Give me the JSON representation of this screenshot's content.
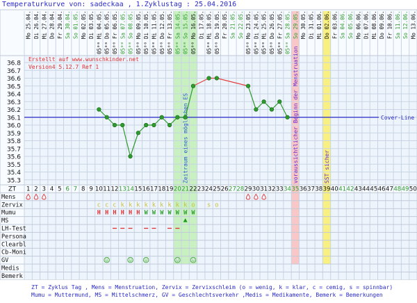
{
  "title": "Temperaturkurve von: sadeckaa , 1.Zyklustag : 25.04.2016",
  "credit": "Erstellt auf www.wunschkinder.net",
  "version": "Version4 5.12.7 Ref 1",
  "header": {
    "weekdays": [
      "Mo",
      "Di",
      "Mi",
      "Do",
      "Fr",
      "Sa",
      "So",
      "Mo",
      "Di",
      "Mi",
      "Do",
      "Fr",
      "Sa",
      "So",
      "Mo",
      "Di",
      "Mi",
      "Do",
      "Fr",
      "Sa",
      "So",
      "Mo",
      "Di",
      "Mi",
      "Do",
      "Fr",
      "Sa",
      "So",
      "Mo",
      "Di",
      "Mi",
      "Do",
      "Fr",
      "Sa",
      "So",
      "Mo",
      "Di",
      "Mi",
      "Do",
      "Fr",
      "Sa",
      "So",
      "Mo",
      "Di",
      "Mi",
      "Do",
      "Fr",
      "Sa",
      "So",
      "Mo"
    ],
    "dates": [
      "25.04.",
      "26.04.",
      "27.04.",
      "28.04.",
      "29.04.",
      "30.04.",
      "01.05.",
      "02.05.",
      "03.05.",
      "04.05.",
      "05.05.",
      "06.05.",
      "07.05.",
      "08.05.",
      "09.05.",
      "10.05.",
      "11.05.",
      "12.05.",
      "13.05.",
      "14.05.",
      "15.05.",
      "16.05.",
      "17.05.",
      "18.05.",
      "19.05.",
      "20.05.",
      "21.05.",
      "22.05.",
      "23.05.",
      "24.05.",
      "25.05.",
      "26.05.",
      "27.05.",
      "28.05.",
      "29.05.",
      "30.05.",
      "31.05.",
      "01.06.",
      "02.06.",
      "03.06.",
      "04.06.",
      "05.06.",
      "06.06.",
      "07.06.",
      "08.06.",
      "09.06.",
      "10.06.",
      "11.06.",
      "12.06.",
      "13.06."
    ],
    "times": [
      null,
      null,
      null,
      null,
      null,
      null,
      null,
      null,
      null,
      "05⁰⁰",
      "05⁰⁰",
      "05⁰⁰",
      "05⁰⁰",
      "05⁰⁰",
      "05⁰⁰",
      "05⁰⁰",
      "05⁰⁰",
      "05⁰⁰",
      "05⁰⁰",
      "05⁰⁰",
      "05⁰⁰",
      "05⁰⁰",
      null,
      "05⁰⁰",
      "05⁰⁰",
      null,
      null,
      null,
      "05⁰⁰",
      "05⁰⁰",
      "05⁰⁰",
      "05⁰⁰",
      "05⁰⁰",
      "05⁰⁰",
      null,
      null,
      null,
      null,
      null,
      null,
      null,
      null,
      null,
      null,
      null,
      null,
      null,
      null,
      null,
      null
    ]
  },
  "chart_data": {
    "type": "line",
    "x": [
      1,
      2,
      3,
      4,
      5,
      6,
      7,
      8,
      9,
      10,
      11,
      12,
      13,
      14,
      15,
      16,
      17,
      18,
      19,
      20,
      21,
      22,
      23,
      24,
      25,
      26,
      27,
      28,
      29,
      30,
      31,
      32,
      33,
      34,
      35,
      36,
      37,
      38,
      39,
      40,
      41,
      42,
      43,
      44,
      45,
      46,
      47,
      48,
      49,
      50
    ],
    "temps": [
      null,
      null,
      null,
      null,
      null,
      null,
      null,
      null,
      null,
      36.2,
      36.1,
      36.0,
      36.0,
      35.6,
      35.9,
      36.0,
      36.0,
      36.1,
      36.0,
      36.1,
      36.1,
      36.5,
      null,
      36.6,
      36.6,
      null,
      null,
      null,
      36.5,
      36.2,
      36.3,
      36.2,
      36.3,
      36.1,
      null,
      null,
      null,
      null,
      null,
      null,
      null,
      null,
      null,
      null,
      null,
      null,
      null,
      null,
      null,
      null
    ],
    "ylim": [
      35.3,
      36.8
    ],
    "yticks": [
      "36.8",
      "36.7",
      "36.6",
      "36.5",
      "36.4",
      "36.3",
      "36.2",
      "36.1",
      "36.0",
      "35.9",
      "35.8",
      "35.7",
      "35.6",
      "35.5",
      "35.4",
      "35.3"
    ],
    "cover_line": 36.1,
    "cover_line_label": "Cover-Line",
    "grid": true,
    "colors": {
      "before": "#2e9a2e",
      "after": "#e04040",
      "point": "#2e9a2e",
      "cover_line": "#2a2ac8"
    }
  },
  "bands": [
    {
      "label": "Zeitraum eines möglichen ES",
      "from": 20,
      "to": 22,
      "color": "#c8f0c0",
      "text_color": "#2a5ad0"
    },
    {
      "label": "voraussichtlicher Beginn der Menstruation",
      "from": 35,
      "to": 35,
      "color": "#f8c8c8",
      "text_color": "#6a2ac8"
    },
    {
      "label": "SST sicher",
      "from": 39,
      "to": 39,
      "color": "#f8f080",
      "text_color": "#6a2ac8"
    }
  ],
  "weekend_days": [
    6,
    7,
    13,
    14,
    20,
    21,
    27,
    28,
    34,
    35,
    41,
    42,
    48,
    49
  ],
  "rows": {
    "zt_label": "ZT",
    "labels": [
      "Mens",
      "Zervix",
      "Mumu",
      "MS",
      "LH-Test",
      "Persona",
      "Clearbl",
      "Cb-Moni",
      "GV",
      "Medis",
      "Bemerk"
    ],
    "mens": [
      1,
      2,
      3,
      29,
      30,
      31
    ],
    "zervix": [
      {
        "day": 10,
        "v": "c"
      },
      {
        "day": 11,
        "v": "c"
      },
      {
        "day": 12,
        "v": "c"
      },
      {
        "day": 13,
        "v": "k"
      },
      {
        "day": 14,
        "v": "k"
      },
      {
        "day": 15,
        "v": "k"
      },
      {
        "day": 16,
        "v": "k"
      },
      {
        "day": 17,
        "v": "k"
      },
      {
        "day": 18,
        "v": "k"
      },
      {
        "day": 19,
        "v": "k"
      },
      {
        "day": 20,
        "v": "k"
      },
      {
        "day": 21,
        "v": "k"
      },
      {
        "day": 22,
        "v": "o"
      },
      {
        "day": 24,
        "v": "s"
      },
      {
        "day": 25,
        "v": "o"
      }
    ],
    "mumu": [
      {
        "day": 10,
        "v": "H"
      },
      {
        "day": 11,
        "v": "H"
      },
      {
        "day": 12,
        "v": "H"
      },
      {
        "day": 13,
        "v": "H"
      },
      {
        "day": 14,
        "v": "H"
      },
      {
        "day": 15,
        "v": "H"
      },
      {
        "day": 16,
        "v": "W"
      },
      {
        "day": 17,
        "v": "W"
      },
      {
        "day": 18,
        "v": "W"
      },
      {
        "day": 19,
        "v": "W"
      },
      {
        "day": 20,
        "v": "W"
      },
      {
        "day": 21,
        "v": "W"
      },
      {
        "day": 22,
        "v": "W"
      }
    ],
    "ms": [
      21
    ],
    "lh_test": [
      12,
      13,
      14,
      16,
      17,
      19,
      20
    ],
    "gv": [
      11,
      14,
      16,
      20,
      22
    ]
  },
  "legend": {
    "line1": "ZT = Zyklus Tag , Mens = Menstruation, Zervix = Zervixschleim (o = wenig, k = klar, c = cemig, s = spinnbar)",
    "line2": "Mumu = Muttermund, MS = Mittelschmerz, GV = Geschlechtsverkehr ,Medis = Medikamente, Bemerk = Bemerkungen"
  }
}
